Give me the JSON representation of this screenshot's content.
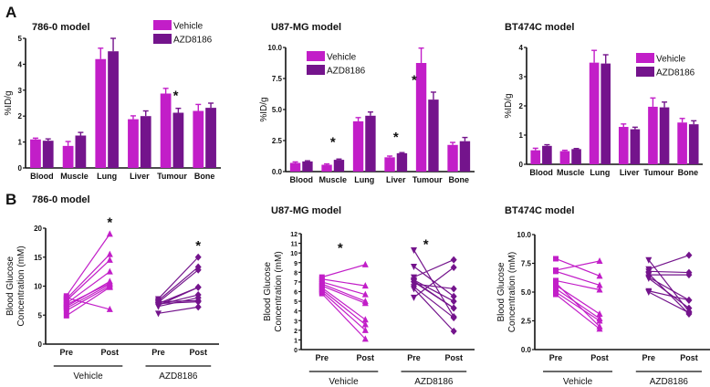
{
  "panel_labels": [
    "A",
    "B"
  ],
  "colors": {
    "vehicle": "#c21ec8",
    "azd": "#74148c",
    "axis": "#111111"
  },
  "chart_data": [
    {
      "id": "A1",
      "type": "bar",
      "title": "786-0 model",
      "ylabel": "%ID/g",
      "ylim": [
        0,
        5
      ],
      "yticks": [
        "0",
        "1",
        "2",
        "3",
        "4",
        "5"
      ],
      "ytick_values": [
        0,
        1,
        2,
        3,
        4,
        5
      ],
      "categories": [
        "Blood",
        "Muscle",
        "Lung",
        "Liver",
        "Tumour",
        "Bone"
      ],
      "legend": "top-right",
      "series": [
        {
          "name": "Vehicle",
          "values": [
            1.1,
            0.85,
            4.2,
            1.88,
            2.87,
            2.2
          ],
          "errors": [
            0.05,
            0.17,
            0.42,
            0.13,
            0.2,
            0.25
          ]
        },
        {
          "name": "AZD8186",
          "values": [
            1.05,
            1.25,
            4.5,
            2.0,
            2.13,
            2.32
          ],
          "errors": [
            0.07,
            0.12,
            0.5,
            0.2,
            0.17,
            0.18
          ]
        }
      ],
      "annotations": [
        {
          "text": "*",
          "category": "Tumour",
          "y": 2.9
        }
      ]
    },
    {
      "id": "A2",
      "type": "bar",
      "title": "U87-MG model",
      "ylabel": "%ID/g",
      "ylim": [
        0,
        10
      ],
      "yticks": [
        "0.0",
        "2.5",
        "5.0",
        "7.5",
        "10.0"
      ],
      "ytick_values": [
        0,
        2.5,
        5,
        7.5,
        10
      ],
      "categories": [
        "Blood",
        "Muscle",
        "Lung",
        "Liver",
        "Tumour",
        "Bone"
      ],
      "legend": "top-left",
      "series": [
        {
          "name": "Vehicle",
          "values": [
            0.7,
            0.55,
            4.05,
            1.15,
            8.75,
            2.15
          ],
          "errors": [
            0.08,
            0.07,
            0.3,
            0.1,
            1.2,
            0.2
          ]
        },
        {
          "name": "AZD8186",
          "values": [
            0.82,
            0.95,
            4.5,
            1.48,
            5.8,
            2.45
          ],
          "errors": [
            0.05,
            0.06,
            0.3,
            0.05,
            0.6,
            0.3
          ]
        }
      ],
      "annotations": [
        {
          "text": "*",
          "category": "Muscle",
          "y": 2.6
        },
        {
          "text": "*",
          "category": "Liver",
          "y": 3.0
        },
        {
          "text": "*",
          "category": "Tumour",
          "y": 7.6
        }
      ]
    },
    {
      "id": "A3",
      "type": "bar",
      "title": "BT474C model",
      "ylabel": "%ID/g",
      "ylim": [
        0,
        4
      ],
      "yticks": [
        "0",
        "1",
        "2",
        "3",
        "4"
      ],
      "ytick_values": [
        0,
        1,
        2,
        3,
        4
      ],
      "categories": [
        "Blood",
        "Muscle",
        "Lung",
        "Liver",
        "Tumour",
        "Bone"
      ],
      "legend": "top-right",
      "series": [
        {
          "name": "Vehicle",
          "values": [
            0.48,
            0.45,
            3.48,
            1.28,
            1.97,
            1.43
          ],
          "errors": [
            0.07,
            0.03,
            0.42,
            0.1,
            0.3,
            0.14
          ]
        },
        {
          "name": "AZD8186",
          "values": [
            0.63,
            0.52,
            3.45,
            1.2,
            1.95,
            1.37
          ],
          "errors": [
            0.04,
            0.02,
            0.3,
            0.07,
            0.18,
            0.12
          ]
        }
      ],
      "annotations": []
    },
    {
      "id": "B1",
      "type": "line",
      "title": "786-0 model",
      "ylabel": [
        "Blood Glucose",
        "Concentration (mM)"
      ],
      "ylim": [
        0,
        20
      ],
      "yticks": [
        "0",
        "5",
        "10",
        "15",
        "20"
      ],
      "ytick_values": [
        0,
        5,
        10,
        15,
        20
      ],
      "x_labels": [
        "Pre",
        "Post",
        "Pre",
        "Post"
      ],
      "groups": [
        "Vehicle",
        "AZD8186"
      ],
      "series": [
        {
          "name": "Vehicle",
          "pre": [
            8.3,
            7.8,
            7.5,
            7.0,
            6.5,
            6.2,
            5.8,
            4.9,
            8.0,
            6.8
          ],
          "post": [
            19,
            15.5,
            14.5,
            12.5,
            10.8,
            10.3,
            10.0,
            9.8,
            6.0,
            10.5
          ]
        },
        {
          "name": "AZD8186",
          "pre": [
            7.8,
            7.5,
            7.2,
            7.0,
            6.8,
            6.5,
            7.3,
            5.3,
            7.0,
            6.7
          ],
          "post": [
            15,
            13.3,
            12.8,
            9.8,
            8.5,
            8.0,
            7.5,
            6.4,
            7.3,
            9.8
          ]
        }
      ],
      "annotations": [
        {
          "text": "*",
          "group": "Vehicle",
          "y": 21.5
        },
        {
          "text": "*",
          "group": "AZD8186",
          "y": 17.5
        }
      ]
    },
    {
      "id": "B2",
      "type": "line",
      "title": "U87-MG model",
      "ylabel": [
        "Blood Glucose",
        "Concentration (mM)"
      ],
      "ylim": [
        0,
        12
      ],
      "yticks": [
        "0",
        "1",
        "2",
        "3",
        "4",
        "5",
        "6",
        "7",
        "8",
        "9",
        "10",
        "11",
        "12"
      ],
      "ytick_values": [
        0,
        1,
        2,
        3,
        4,
        5,
        6,
        7,
        8,
        9,
        10,
        11,
        12
      ],
      "x_labels": [
        "Pre",
        "Post",
        "Pre",
        "Post"
      ],
      "groups": [
        "Vehicle",
        "AZD8186"
      ],
      "series": [
        {
          "name": "Vehicle",
          "pre": [
            7.5,
            7.3,
            7.0,
            6.8,
            6.6,
            6.4,
            6.2,
            6.0,
            5.8
          ],
          "post": [
            8.8,
            6.6,
            5.7,
            5.0,
            4.8,
            3.1,
            2.6,
            2.0,
            1.1
          ]
        },
        {
          "name": "AZD8186",
          "pre": [
            10.3,
            8.6,
            7.5,
            7.2,
            7.0,
            6.8,
            6.5,
            6.3,
            5.4,
            7.1
          ],
          "post": [
            3.4,
            5.5,
            9.3,
            5.0,
            4.3,
            6.3,
            3.3,
            1.9,
            8.5,
            4.3
          ]
        }
      ],
      "annotations": [
        {
          "text": "*",
          "group": "Vehicle",
          "y": 10.8
        },
        {
          "text": "*",
          "group": "AZD8186",
          "y": 11.2
        }
      ]
    },
    {
      "id": "B3",
      "type": "line",
      "title": "BT474C model",
      "ylabel": [
        "Blood Glucose",
        "Concentration (mM)"
      ],
      "ylim": [
        0,
        10
      ],
      "yticks": [
        "0.0",
        "2.5",
        "5.0",
        "7.5",
        "10.0"
      ],
      "ytick_values": [
        0,
        2.5,
        5,
        7.5,
        10
      ],
      "x_labels": [
        "Pre",
        "Post",
        "Pre",
        "Post"
      ],
      "groups": [
        "Vehicle",
        "AZD8186"
      ],
      "series": [
        {
          "name": "Vehicle",
          "pre": [
            7.9,
            6.9,
            6.8,
            6.0,
            5.6,
            5.3,
            5.0,
            4.8,
            5.8
          ],
          "post": [
            6.4,
            7.7,
            5.6,
            5.2,
            3.1,
            2.7,
            2.5,
            1.8,
            2.0
          ]
        },
        {
          "name": "AZD8186",
          "pre": [
            7.8,
            7.0,
            6.8,
            6.5,
            6.3,
            6.2,
            5.1,
            5.0,
            6.6
          ],
          "post": [
            3.3,
            8.2,
            6.7,
            6.5,
            4.3,
            3.6,
            4.3,
            3.2,
            3.1
          ]
        }
      ],
      "annotations": []
    }
  ]
}
